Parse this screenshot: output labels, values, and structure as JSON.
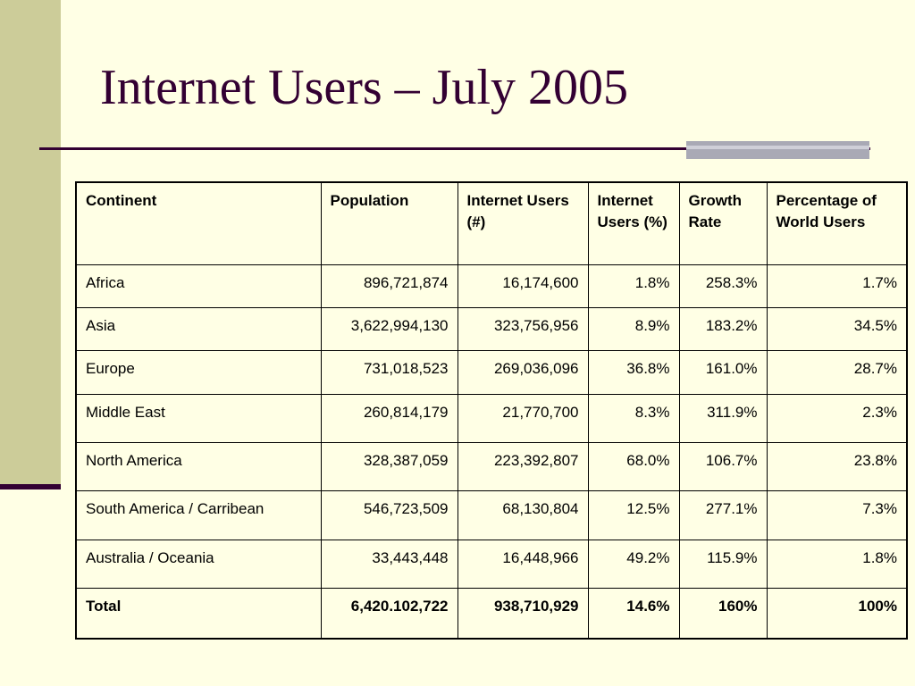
{
  "slide": {
    "title": "Internet Users – July 2005"
  },
  "table": {
    "headers": [
      "Continent",
      "Population",
      "Internet Users (#)",
      "Internet Users (%)",
      "Growth Rate",
      "Percentage of World Users"
    ],
    "rows": [
      [
        "Africa",
        "896,721,874",
        "16,174,600",
        "1.8%",
        "258.3%",
        "1.7%"
      ],
      [
        "Asia",
        "3,622,994,130",
        "323,756,956",
        "8.9%",
        "183.2%",
        "34.5%"
      ],
      [
        "Europe",
        "731,018,523",
        "269,036,096",
        "36.8%",
        "161.0%",
        "28.7%"
      ],
      [
        "Middle East",
        "260,814,179",
        "21,770,700",
        "8.3%",
        "311.9%",
        "2.3%"
      ],
      [
        "North America",
        "328,387,059",
        "223,392,807",
        "68.0%",
        "106.7%",
        "23.8%"
      ],
      [
        "South America / Carribean",
        "546,723,509",
        "68,130,804",
        "12.5%",
        "277.1%",
        "7.3%"
      ],
      [
        "Australia / Oceania",
        "33,443,448",
        "16,448,966",
        "49.2%",
        "115.9%",
        "1.8%"
      ]
    ],
    "total": [
      "Total",
      "6,420.102,722",
      "938,710,929",
      "14.6%",
      "160%",
      "100%"
    ]
  },
  "colors": {
    "background": "#ffffe5",
    "sidebar": "#cccc99",
    "title_text": "#330033",
    "rule": "#330033",
    "rule_accent": "#a9a9b5"
  }
}
